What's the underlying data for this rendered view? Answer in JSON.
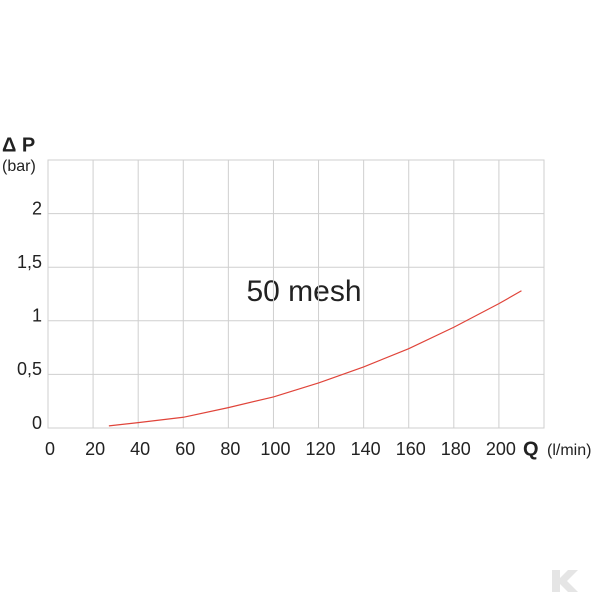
{
  "chart_data": {
    "type": "line",
    "y_label": "Δ P",
    "y_unit": "(bar)",
    "x_label": "Q",
    "x_unit": "(l/min)",
    "annotation": "50 mesh",
    "x": [
      27,
      40,
      60,
      80,
      100,
      120,
      140,
      160,
      180,
      200,
      210
    ],
    "series": [
      {
        "color": "#e0443a",
        "values": [
          0.02,
          0.05,
          0.1,
          0.19,
          0.29,
          0.42,
          0.57,
          0.74,
          0.94,
          1.16,
          1.28
        ]
      }
    ],
    "xlim": [
      0,
      220
    ],
    "xticks": [
      0,
      20,
      40,
      60,
      80,
      100,
      120,
      140,
      160,
      180,
      200
    ],
    "ylim": [
      0,
      2.5
    ],
    "yticks": [
      0,
      {
        "value": 0.5,
        "label": "0,5"
      },
      1,
      {
        "value": 1.5,
        "label": "1,5"
      },
      2
    ],
    "grid": true
  }
}
